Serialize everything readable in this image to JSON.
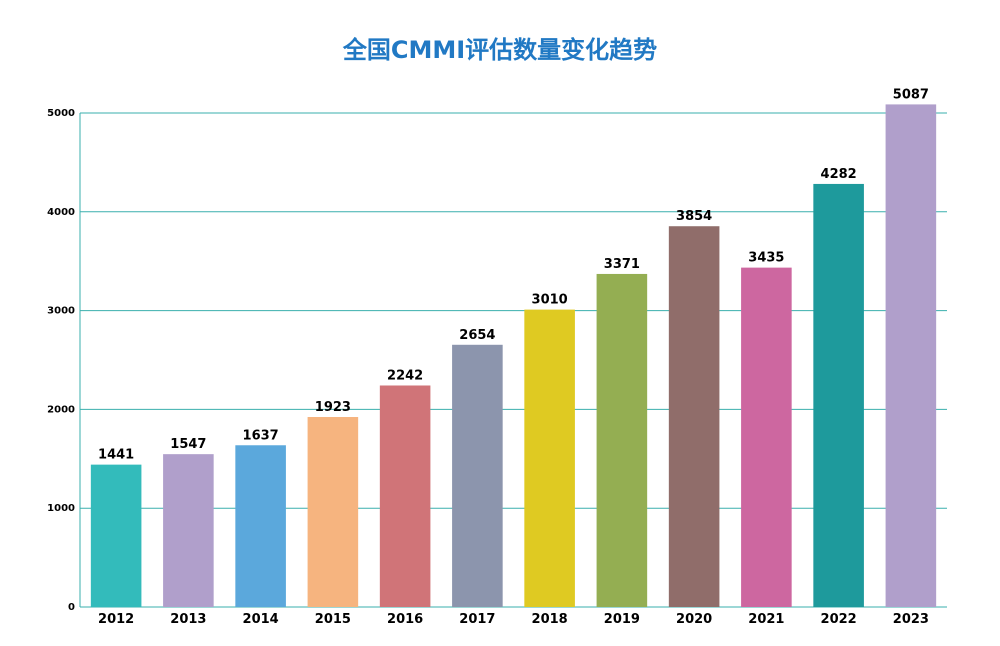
{
  "chart_data": {
    "type": "bar",
    "title": "全国CMMI评估数量变化趋势",
    "xlabel": "",
    "ylabel": "",
    "ylim": [
      0,
      5000
    ],
    "yticks": [
      "0",
      "1000",
      "2000",
      "3000",
      "4000",
      "5000"
    ],
    "grid": true,
    "categories": [
      "2012",
      "2013",
      "2014",
      "2015",
      "2016",
      "2017",
      "2018",
      "2019",
      "2020",
      "2021",
      "2022",
      "2023"
    ],
    "values": [
      1441,
      1547,
      1637,
      1923,
      2242,
      2654,
      3010,
      3371,
      3854,
      3435,
      4282,
      5087
    ],
    "data_labels": [
      "1441",
      "1547",
      "1637",
      "1923",
      "2242",
      "2654",
      "3010",
      "3371",
      "3854",
      "3435",
      "4282",
      "5087"
    ],
    "colors": [
      "#33bbbb",
      "#b09fcb",
      "#5ba8dc",
      "#f6b47f",
      "#d07478",
      "#8c95ad",
      "#dfca22",
      "#94ae52",
      "#906d6a",
      "#cd67a0",
      "#1e9a9c",
      "#b09fcb"
    ],
    "title_color": "#2179c4",
    "grid_color": "#3aafad"
  }
}
